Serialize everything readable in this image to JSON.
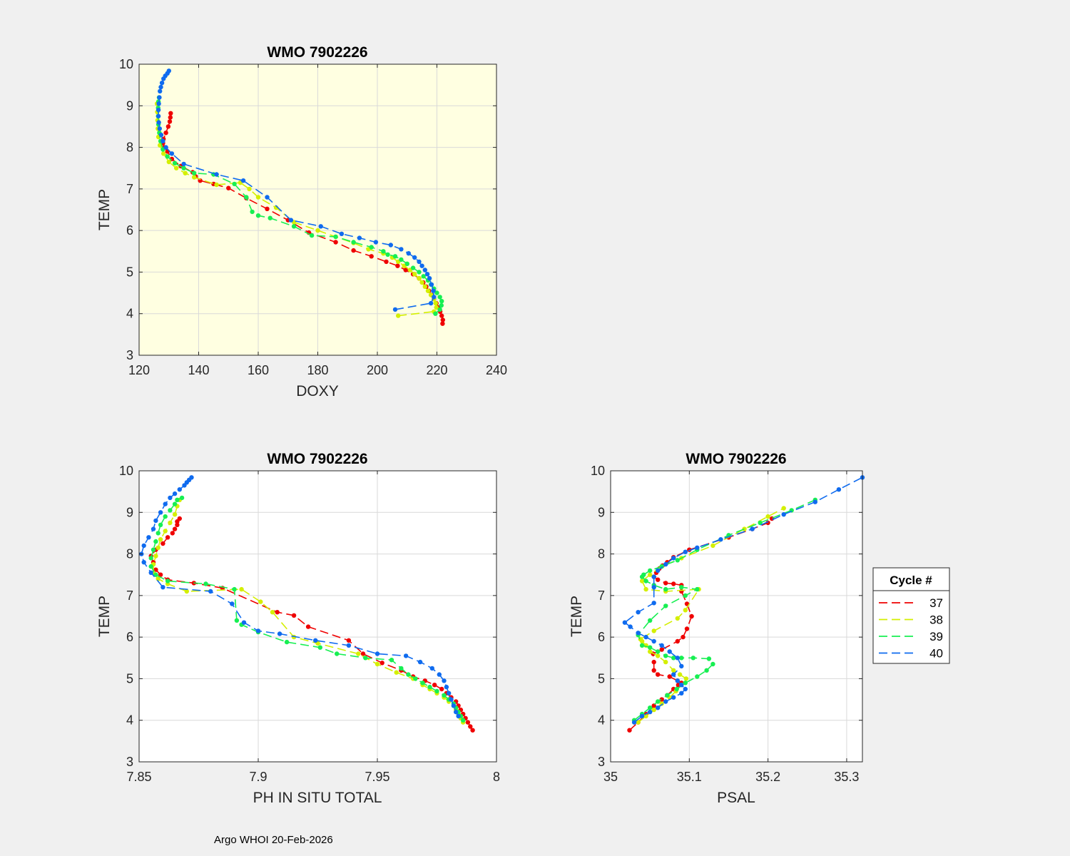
{
  "colors": {
    "figure_bg": "#f0f0f0",
    "axes_bg_highlight": "#ffffe1",
    "axes_bg": "#ffffff",
    "c37": "#ef0000",
    "c38": "#d4ef00",
    "c39": "#17ef52",
    "c40": "#0f6bef"
  },
  "footer": "Argo WHOI 20-Feb-2026",
  "legend": {
    "title": "Cycle #",
    "entries": [
      "37",
      "38",
      "39",
      "40"
    ]
  },
  "chart_data": [
    {
      "id": "doxy",
      "type": "line",
      "title": "WMO 7902226",
      "xlabel": "DOXY",
      "ylabel": "TEMP",
      "xlim": [
        120,
        240
      ],
      "ylim": [
        3,
        10
      ],
      "xticks": [
        "120",
        "140",
        "160",
        "180",
        "200",
        "220",
        "240"
      ],
      "yticks": [
        "3",
        "4",
        "5",
        "6",
        "7",
        "8",
        "9",
        "10"
      ],
      "background": "highlight",
      "series": [
        {
          "name": "37",
          "x": [
            221.9,
            222.0,
            221.6,
            221.1,
            220.5,
            219.8,
            219.0,
            218.2,
            217.3,
            216.4,
            215.4,
            214.0,
            212.0,
            209.5,
            206.8,
            203.0,
            198.0,
            192.0,
            186.0,
            177.0,
            170.0,
            163.0,
            156.0,
            150.0,
            145.0,
            140.5,
            139.0,
            138.0,
            134.0,
            131.0,
            129.5,
            128.5,
            128.0,
            128.2,
            129.0,
            129.8,
            130.3,
            130.5,
            130.6
          ],
          "y": [
            3.76,
            3.85,
            3.95,
            4.05,
            4.15,
            4.25,
            4.35,
            4.45,
            4.55,
            4.65,
            4.75,
            4.85,
            4.95,
            5.05,
            5.15,
            5.25,
            5.38,
            5.52,
            5.72,
            5.95,
            6.25,
            6.52,
            6.78,
            7.02,
            7.12,
            7.2,
            7.3,
            7.4,
            7.55,
            7.72,
            7.9,
            8.0,
            8.1,
            8.2,
            8.35,
            8.5,
            8.62,
            8.72,
            8.82
          ]
        },
        {
          "name": "38",
          "x": [
            207.0,
            219.0,
            219.8,
            219.6,
            219.0,
            218.0,
            217.0,
            216.0,
            215.0,
            214.0,
            212.5,
            211.0,
            209.0,
            207.0,
            205.0,
            202.0,
            197.0,
            192.0,
            186.0,
            180.0,
            172.0,
            166.0,
            160.0,
            157.0,
            154.0,
            146.0,
            138.5,
            135.5,
            132.5,
            130.0,
            128.2,
            127.0,
            126.5,
            126.3,
            126.2,
            126.1,
            126.0
          ],
          "y": [
            3.95,
            4.05,
            4.15,
            4.25,
            4.35,
            4.45,
            4.55,
            4.65,
            4.75,
            4.85,
            4.95,
            5.05,
            5.15,
            5.25,
            5.35,
            5.45,
            5.55,
            5.7,
            5.85,
            6.0,
            6.2,
            6.55,
            6.8,
            7.0,
            7.15,
            7.1,
            7.28,
            7.38,
            7.5,
            7.65,
            7.85,
            8.05,
            8.25,
            8.45,
            8.65,
            8.85,
            9.05
          ]
        },
        {
          "name": "39",
          "x": [
            219.5,
            221.0,
            221.5,
            221.6,
            221.0,
            220.0,
            219.0,
            218.0,
            217.0,
            215.5,
            214.0,
            212.0,
            210.0,
            208.0,
            206.0,
            203.5,
            202.0,
            198.0,
            192.0,
            186.0,
            178.0,
            172.0,
            164.0,
            160.0,
            158.0,
            156.0,
            152.0,
            145.0,
            138.5,
            135.0,
            132.0,
            129.5,
            128.0,
            127.2,
            126.8,
            126.5,
            126.4,
            126.4,
            126.5,
            126.7
          ],
          "y": [
            4.0,
            4.1,
            4.2,
            4.3,
            4.4,
            4.5,
            4.6,
            4.7,
            4.8,
            4.9,
            5.0,
            5.1,
            5.2,
            5.3,
            5.38,
            5.42,
            5.5,
            5.6,
            5.72,
            5.85,
            5.88,
            6.1,
            6.3,
            6.36,
            6.45,
            6.8,
            7.12,
            7.35,
            7.38,
            7.5,
            7.62,
            7.78,
            7.95,
            8.15,
            8.35,
            8.55,
            8.75,
            8.95,
            9.1,
            9.2
          ]
        },
        {
          "name": "40",
          "x": [
            206.0,
            218.0,
            219.0,
            218.8,
            218.2,
            217.5,
            216.8,
            216.0,
            215.0,
            214.0,
            212.5,
            210.5,
            208.0,
            204.5,
            199.5,
            194.0,
            188.0,
            181.0,
            171.0,
            163.0,
            155.0,
            146.0,
            135.0,
            131.0,
            129.0,
            128.0,
            127.4,
            126.9,
            126.6,
            126.5,
            126.5,
            126.6,
            126.8,
            127.0,
            127.3,
            127.7,
            128.2,
            128.8,
            129.5,
            130.0
          ],
          "y": [
            4.1,
            4.25,
            4.4,
            4.55,
            4.7,
            4.85,
            4.95,
            5.05,
            5.15,
            5.25,
            5.35,
            5.45,
            5.55,
            5.65,
            5.72,
            5.82,
            5.92,
            6.1,
            6.25,
            6.8,
            7.2,
            7.35,
            7.6,
            7.85,
            8.0,
            8.15,
            8.3,
            8.45,
            8.6,
            8.75,
            8.9,
            9.05,
            9.2,
            9.35,
            9.45,
            9.55,
            9.65,
            9.72,
            9.78,
            9.84
          ]
        }
      ]
    },
    {
      "id": "ph",
      "type": "line",
      "title": "WMO 7902226",
      "xlabel": "PH IN SITU TOTAL",
      "ylabel": "TEMP",
      "xlim": [
        7.85,
        8.0
      ],
      "ylim": [
        3,
        10
      ],
      "xticks": [
        "7.85",
        "7.9",
        "7.95",
        "8"
      ],
      "yticks": [
        "3",
        "4",
        "5",
        "6",
        "7",
        "8",
        "9",
        "10"
      ],
      "background": "plain",
      "series": [
        {
          "name": "37",
          "x": [
            7.99,
            7.989,
            7.988,
            7.987,
            7.986,
            7.985,
            7.984,
            7.983,
            7.981,
            7.979,
            7.977,
            7.974,
            7.97,
            7.965,
            7.96,
            7.952,
            7.944,
            7.938,
            7.921,
            7.915,
            7.908,
            7.885,
            7.873,
            7.862,
            7.859,
            7.857,
            7.856,
            7.855,
            7.857,
            7.86,
            7.862,
            7.864,
            7.865,
            7.866,
            7.866,
            7.867
          ],
          "y": [
            3.76,
            3.85,
            3.95,
            4.05,
            4.15,
            4.25,
            4.35,
            4.45,
            4.55,
            4.65,
            4.75,
            4.85,
            4.95,
            5.05,
            5.2,
            5.38,
            5.6,
            5.92,
            6.25,
            6.52,
            6.6,
            7.18,
            7.3,
            7.38,
            7.5,
            7.62,
            7.8,
            7.95,
            8.1,
            8.25,
            8.4,
            8.5,
            8.6,
            8.7,
            8.78,
            8.85
          ]
        },
        {
          "name": "38",
          "x": [
            7.986,
            7.985,
            7.984,
            7.983,
            7.982,
            7.98,
            7.978,
            7.975,
            7.972,
            7.969,
            7.965,
            7.958,
            7.95,
            7.942,
            7.925,
            7.915,
            7.906,
            7.901,
            7.893,
            7.87,
            7.862,
            7.858,
            7.856,
            7.856,
            7.857,
            7.858,
            7.859,
            7.861,
            7.863,
            7.865,
            7.866,
            7.867
          ],
          "y": [
            3.95,
            4.05,
            4.15,
            4.25,
            4.35,
            4.45,
            4.55,
            4.65,
            4.75,
            4.85,
            5.0,
            5.15,
            5.35,
            5.6,
            5.85,
            6.0,
            6.6,
            6.85,
            7.15,
            7.1,
            7.28,
            7.4,
            7.55,
            7.75,
            7.95,
            8.15,
            8.35,
            8.55,
            8.75,
            8.95,
            9.15,
            9.3
          ]
        },
        {
          "name": "39",
          "x": [
            7.986,
            7.985,
            7.984,
            7.983,
            7.982,
            7.98,
            7.978,
            7.975,
            7.972,
            7.969,
            7.966,
            7.963,
            7.96,
            7.956,
            7.945,
            7.933,
            7.926,
            7.912,
            7.9,
            7.893,
            7.891,
            7.89,
            7.878,
            7.862,
            7.857,
            7.855,
            7.855,
            7.856,
            7.857,
            7.858,
            7.859,
            7.861,
            7.863,
            7.865,
            7.866,
            7.868
          ],
          "y": [
            4.0,
            4.1,
            4.2,
            4.3,
            4.4,
            4.5,
            4.6,
            4.7,
            4.8,
            4.9,
            5.0,
            5.1,
            5.25,
            5.45,
            5.5,
            5.6,
            5.75,
            5.88,
            6.12,
            6.3,
            6.4,
            7.15,
            7.28,
            7.35,
            7.5,
            7.7,
            7.9,
            8.1,
            8.3,
            8.5,
            8.7,
            8.9,
            9.05,
            9.2,
            9.3,
            9.35
          ]
        },
        {
          "name": "40",
          "x": [
            7.984,
            7.983,
            7.982,
            7.981,
            7.98,
            7.979,
            7.978,
            7.976,
            7.973,
            7.968,
            7.962,
            7.95,
            7.938,
            7.924,
            7.909,
            7.9,
            7.894,
            7.889,
            7.88,
            7.86,
            7.855,
            7.852,
            7.851,
            7.852,
            7.854,
            7.856,
            7.857,
            7.859,
            7.861,
            7.863,
            7.865,
            7.867,
            7.869,
            7.87,
            7.871,
            7.872
          ],
          "y": [
            4.1,
            4.2,
            4.35,
            4.5,
            4.65,
            4.8,
            4.95,
            5.1,
            5.25,
            5.4,
            5.55,
            5.6,
            5.8,
            5.92,
            6.08,
            6.15,
            6.35,
            6.8,
            7.1,
            7.2,
            7.55,
            7.8,
            8.0,
            8.2,
            8.4,
            8.6,
            8.8,
            9.0,
            9.2,
            9.35,
            9.45,
            9.55,
            9.65,
            9.72,
            9.78,
            9.84
          ]
        }
      ]
    },
    {
      "id": "psal",
      "type": "line",
      "title": "WMO 7902226",
      "xlabel": "PSAL",
      "ylabel": "TEMP",
      "xlim": [
        35.0,
        35.32
      ],
      "ylim": [
        3,
        10
      ],
      "xticks": [
        "35",
        "35.1",
        "35.2",
        "35.3"
      ],
      "yticks": [
        "3",
        "4",
        "5",
        "6",
        "7",
        "8",
        "9",
        "10"
      ],
      "background": "plain",
      "series": [
        {
          "name": "37",
          "x": [
            35.024,
            35.035,
            35.045,
            35.055,
            35.065,
            35.072,
            35.08,
            35.086,
            35.09,
            35.085,
            35.075,
            35.06,
            35.055,
            35.055,
            35.054,
            35.065,
            35.085,
            35.092,
            35.097,
            35.103,
            35.097,
            35.09,
            35.09,
            35.08,
            35.07,
            35.06,
            35.055,
            35.058,
            35.062,
            35.066,
            35.072,
            35.08,
            35.1,
            35.15,
            35.18,
            35.2,
            35.205
          ],
          "y": [
            3.76,
            3.95,
            4.15,
            4.35,
            4.5,
            4.6,
            4.75,
            4.85,
            4.9,
            4.95,
            5.05,
            5.1,
            5.2,
            5.4,
            5.6,
            5.7,
            5.9,
            6.0,
            6.2,
            6.5,
            6.8,
            7.1,
            7.25,
            7.28,
            7.3,
            7.38,
            7.45,
            7.55,
            7.65,
            7.72,
            7.8,
            7.92,
            8.1,
            8.4,
            8.6,
            8.75,
            8.85
          ]
        },
        {
          "name": "38",
          "x": [
            35.035,
            35.045,
            35.055,
            35.065,
            35.075,
            35.083,
            35.09,
            35.096,
            35.088,
            35.08,
            35.07,
            35.06,
            35.05,
            35.045,
            35.04,
            35.038,
            35.055,
            35.085,
            35.095,
            35.112,
            35.07,
            35.045,
            35.04,
            35.05,
            35.065,
            35.09,
            35.13,
            35.17,
            35.2,
            35.22
          ],
          "y": [
            3.95,
            4.1,
            4.25,
            4.4,
            4.55,
            4.7,
            4.85,
            5.0,
            5.1,
            5.2,
            5.4,
            5.55,
            5.65,
            5.8,
            5.9,
            5.95,
            6.15,
            6.45,
            6.65,
            7.15,
            7.1,
            7.15,
            7.35,
            7.5,
            7.7,
            7.9,
            8.2,
            8.6,
            8.9,
            9.1
          ]
        },
        {
          "name": "39",
          "x": [
            35.03,
            35.04,
            35.05,
            35.06,
            35.072,
            35.084,
            35.095,
            35.11,
            35.122,
            35.13,
            35.125,
            35.105,
            35.09,
            35.08,
            35.07,
            35.06,
            35.05,
            35.04,
            35.035,
            35.05,
            35.07,
            35.095,
            35.11,
            35.09,
            35.07,
            35.055,
            35.045,
            35.04,
            35.042,
            35.05,
            35.065,
            35.085,
            35.11,
            35.15,
            35.19,
            35.23,
            35.26
          ],
          "y": [
            4.0,
            4.15,
            4.3,
            4.45,
            4.6,
            4.75,
            4.9,
            5.05,
            5.2,
            5.35,
            5.48,
            5.5,
            5.5,
            5.5,
            5.55,
            5.65,
            5.75,
            5.8,
            6.05,
            6.4,
            6.75,
            7.0,
            7.15,
            7.2,
            7.15,
            7.25,
            7.35,
            7.45,
            7.5,
            7.6,
            7.7,
            7.85,
            8.1,
            8.45,
            8.75,
            9.05,
            9.3
          ]
        },
        {
          "name": "40",
          "x": [
            35.03,
            35.04,
            35.05,
            35.06,
            35.07,
            35.08,
            35.09,
            35.095,
            35.09,
            35.085,
            35.08,
            35.09,
            35.085,
            35.075,
            35.065,
            35.055,
            35.045,
            35.035,
            35.025,
            35.018,
            35.035,
            35.055,
            35.055,
            35.055,
            35.06,
            35.07,
            35.08,
            35.095,
            35.11,
            35.14,
            35.18,
            35.22,
            35.26,
            35.29,
            35.32
          ],
          "y": [
            3.95,
            4.1,
            4.2,
            4.3,
            4.45,
            4.55,
            4.65,
            4.75,
            4.85,
            4.95,
            5.1,
            5.3,
            5.5,
            5.65,
            5.8,
            5.9,
            6.0,
            6.1,
            6.25,
            6.35,
            6.6,
            6.82,
            7.2,
            7.45,
            7.6,
            7.75,
            7.9,
            8.05,
            8.15,
            8.35,
            8.6,
            8.95,
            9.25,
            9.55,
            9.84
          ]
        }
      ]
    }
  ]
}
